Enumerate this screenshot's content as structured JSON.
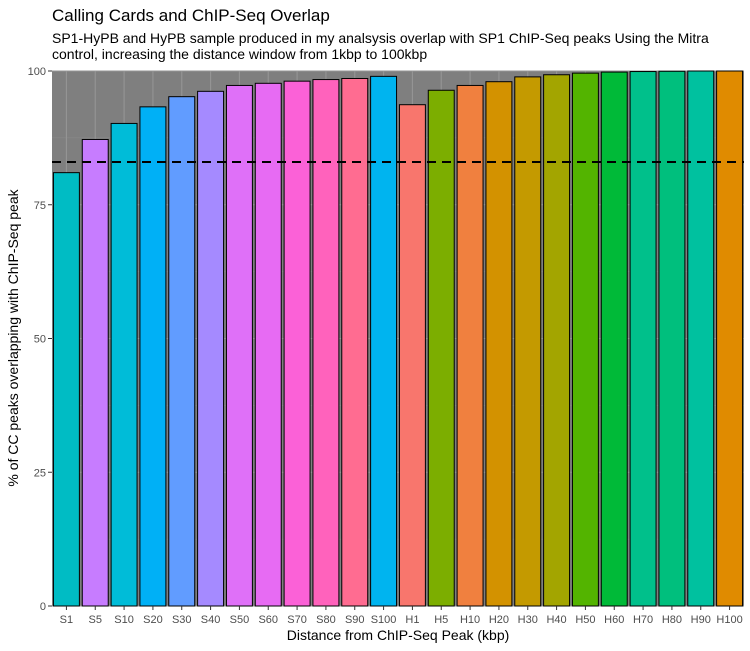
{
  "chart_data": {
    "type": "bar",
    "title": "Calling Cards and ChIP-Seq Overlap",
    "subtitle": "SP1-HyPB and HyPB sample produced in my analsysis overlap with SP1 ChIP-Seq peaks Using the Mitra control, increasing the distance window from 1kbp to 100kbp",
    "xlabel": "Distance from ChIP-Seq Peak (kbp)",
    "ylabel": "% of CC peaks overlapping with ChIP-Seq peak",
    "ylim": [
      0,
      100
    ],
    "yticks": [
      0,
      25,
      50,
      75,
      100
    ],
    "reference_line": 83,
    "legend": "none",
    "grid": true,
    "categories": [
      "S1",
      "S5",
      "S10",
      "S20",
      "S30",
      "S40",
      "S50",
      "S60",
      "S70",
      "S80",
      "S90",
      "S100",
      "H1",
      "H5",
      "H10",
      "H20",
      "H30",
      "H40",
      "H50",
      "H60",
      "H70",
      "H80",
      "H90",
      "H100"
    ],
    "values": [
      81,
      87.2,
      90.2,
      93.3,
      95.2,
      96.2,
      97.3,
      97.7,
      98.1,
      98.4,
      98.6,
      99,
      93.7,
      96.4,
      97.3,
      98,
      98.9,
      99.3,
      99.6,
      99.8,
      99.9,
      99.95,
      100,
      100
    ],
    "colors": [
      "#00BCC4",
      "#C77CFF",
      "#00BCD8",
      "#00B0F6",
      "#619CFF",
      "#A58AFF",
      "#DF70F8",
      "#E76BF3",
      "#FB61D7",
      "#FF62BC",
      "#FF6C91",
      "#00B4EF",
      "#F8766D",
      "#7CAE00",
      "#F0803F",
      "#D39200",
      "#C49A00",
      "#A3A500",
      "#53B400",
      "#00BA38",
      "#00C08B",
      "#00BF7D",
      "#00C19F",
      "#E08B00"
    ]
  }
}
